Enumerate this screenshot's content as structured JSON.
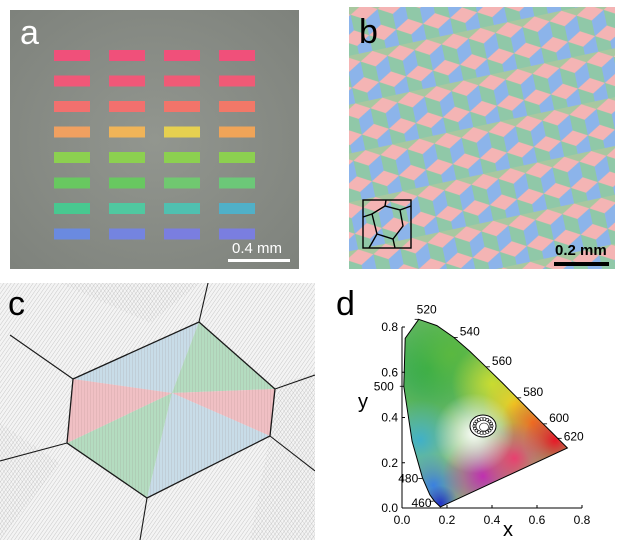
{
  "panels": {
    "a": {
      "letter": "a",
      "scale_bar_label": "0.4 mm",
      "swatch_rows": [
        [
          "#f0507a",
          "#f0507a",
          "#f0507a",
          "#f0507a"
        ],
        [
          "#f05878",
          "#f05878",
          "#f05a76",
          "#f05a76"
        ],
        [
          "#f2706e",
          "#f2706e",
          "#f2746a",
          "#f27868"
        ],
        [
          "#f0a060",
          "#f0b458",
          "#e6d050",
          "#f0a458"
        ],
        [
          "#8cd050",
          "#8cd050",
          "#8cd050",
          "#8cd050"
        ],
        [
          "#68c860",
          "#68c860",
          "#70c870",
          "#6cc878"
        ],
        [
          "#48c890",
          "#50c8a0",
          "#50c0b0",
          "#50b0c8"
        ],
        [
          "#6a8ae0",
          "#7484e0",
          "#7a7ee0",
          "#7a7ee0"
        ]
      ]
    },
    "b": {
      "letter": "b",
      "scale_bar_label": "0.2 mm",
      "colors": {
        "top": "#f4b4b4",
        "left": "#90c8a8",
        "right": "#8cb4ea"
      }
    },
    "c": {
      "letter": "c",
      "colors": {
        "green": "#b4dcc0",
        "red": "#f0c0c4",
        "blue": "#c8dce8",
        "background": "#f4f4f4"
      }
    },
    "d": {
      "letter": "d",
      "x_axis_label": "x",
      "y_axis_label": "y",
      "x_ticks": [
        "0.0",
        "0.2",
        "0.4",
        "0.6",
        "0.8"
      ],
      "y_ticks": [
        "0.0",
        "0.2",
        "0.4",
        "0.6",
        "0.8"
      ],
      "wavelength_labels": [
        "460",
        "480",
        "500",
        "520",
        "540",
        "560",
        "580",
        "600",
        "620"
      ]
    }
  }
}
